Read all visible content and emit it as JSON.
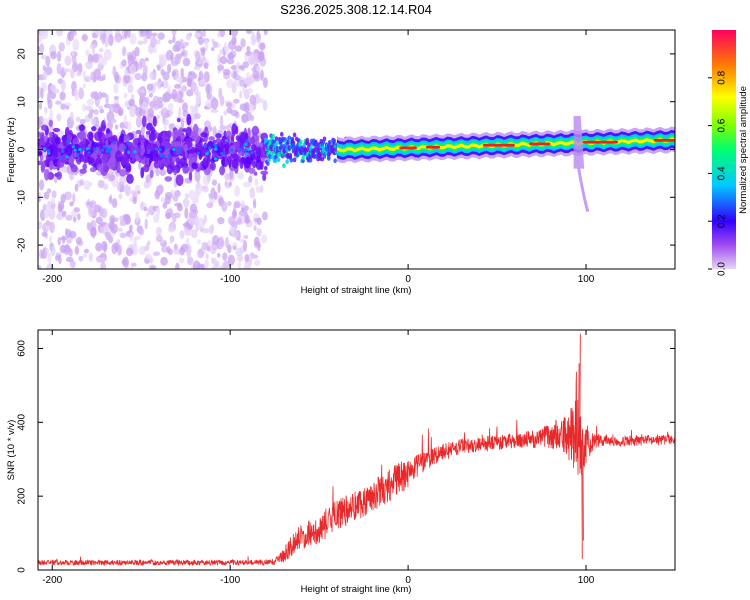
{
  "title": "S236.2025.308.12.14.R04",
  "colors": {
    "snr_line": "#e8292b",
    "axis": "#000000",
    "background": "#ffffff"
  },
  "chart_data": [
    {
      "type": "heatmap",
      "name": "spectrogram",
      "xlabel": "Height of straight line (km)",
      "ylabel": "Frequency (Hz)",
      "xlim": [
        -208,
        150
      ],
      "ylim": [
        -25,
        25
      ],
      "xticks": [
        -200,
        -100,
        0,
        100
      ],
      "yticks": [
        -20,
        -10,
        0,
        10,
        20
      ],
      "description_values": {
        "noise_region_km": [
          -208,
          -80
        ],
        "signal_center_hz": 0,
        "signal_drift_hz_at_150km": 2,
        "spike_near_km": 95
      },
      "colorbar": {
        "label": "Normalized spectral amplitude",
        "ticks": [
          0.0,
          0.2,
          0.4,
          0.6,
          0.8
        ],
        "range": [
          0,
          1
        ]
      }
    },
    {
      "type": "line",
      "name": "snr",
      "xlabel": "Height of straight line (km)",
      "ylabel": "SNR (10 * v/v)",
      "xlim": [
        -208,
        150
      ],
      "ylim": [
        0,
        650
      ],
      "xticks": [
        -200,
        -100,
        0,
        100
      ],
      "yticks": [
        0,
        200,
        400,
        600
      ],
      "series": [
        {
          "name": "SNR",
          "x": [
            -208,
            -180,
            -150,
            -120,
            -100,
            -85,
            -75,
            -70,
            -65,
            -60,
            -55,
            -50,
            -45,
            -40,
            -35,
            -30,
            -25,
            -20,
            -15,
            -10,
            -5,
            0,
            5,
            10,
            20,
            30,
            40,
            50,
            60,
            70,
            75,
            80,
            85,
            90,
            93,
            95,
            97,
            100,
            103,
            105,
            110,
            120,
            130,
            140,
            150
          ],
          "values": [
            20,
            20,
            20,
            20,
            20,
            20,
            22,
            40,
            70,
            90,
            100,
            110,
            130,
            150,
            160,
            175,
            185,
            200,
            215,
            230,
            250,
            260,
            280,
            300,
            320,
            335,
            340,
            345,
            350,
            355,
            360,
            362,
            362,
            360,
            370,
            380,
            350,
            340,
            345,
            350,
            350,
            348,
            350,
            352,
            355
          ],
          "amplitude": [
            10,
            10,
            10,
            10,
            10,
            10,
            12,
            30,
            45,
            50,
            50,
            55,
            60,
            60,
            60,
            60,
            60,
            60,
            60,
            65,
            60,
            55,
            45,
            40,
            35,
            30,
            30,
            30,
            30,
            35,
            40,
            45,
            60,
            90,
            150,
            200,
            150,
            90,
            40,
            30,
            20,
            20,
            20,
            20,
            20
          ]
        }
      ]
    }
  ]
}
